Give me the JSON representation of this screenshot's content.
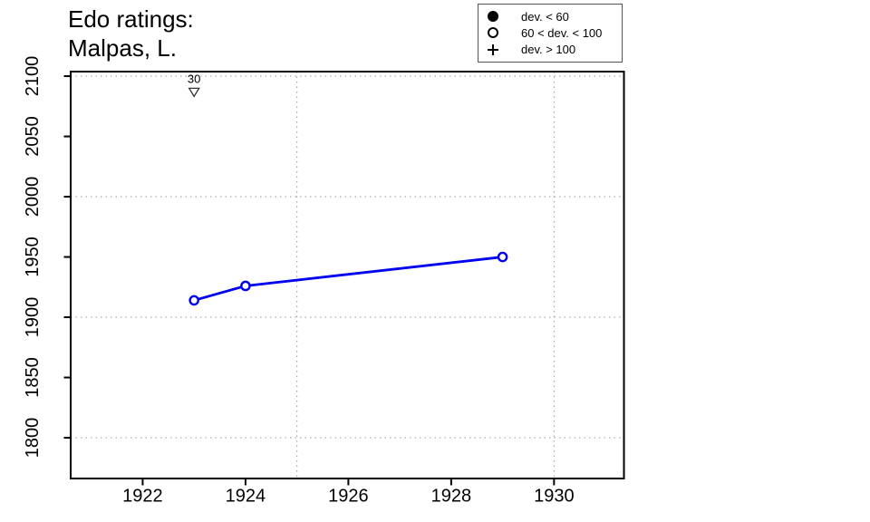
{
  "title": {
    "line1": "Edo ratings:",
    "line2": "Malpas, L."
  },
  "legend": {
    "items": [
      {
        "icon": "filled-circle",
        "label": "dev. < 60"
      },
      {
        "icon": "open-circle",
        "label": "60 < dev. < 100"
      },
      {
        "icon": "plus",
        "label": "dev. > 100"
      }
    ]
  },
  "colors": {
    "series": "#0000EE",
    "marker_fill": "#FFFFFF",
    "grid": "#999999",
    "axis": "#000000",
    "annotation": "#333333",
    "background": "#FFFFFF"
  },
  "chart_data": {
    "type": "line",
    "title": "Edo ratings: Malpas, L.",
    "xlabel": "",
    "ylabel": "",
    "xlim": [
      1920.6,
      1931.36
    ],
    "ylim": [
      1766.2,
      2103.8
    ],
    "x_ticks": [
      1922,
      1924,
      1926,
      1928,
      1930
    ],
    "y_ticks": [
      1800,
      1850,
      1900,
      1950,
      2000,
      2050,
      2100
    ],
    "x_gridlines": [
      1925,
      1930
    ],
    "y_gridlines": [
      1800,
      1900,
      2000,
      2100
    ],
    "grid_style": "dotted",
    "legend_position": "top-right",
    "series": [
      {
        "name": "Edo rating",
        "marker": "open-circle",
        "points": [
          [
            1923,
            1914
          ],
          [
            1924,
            1926
          ],
          [
            1929,
            1950
          ]
        ]
      }
    ],
    "annotations": [
      {
        "x": 1923,
        "y": 2087,
        "label": "30",
        "marker": "triangle-down-open"
      }
    ]
  }
}
